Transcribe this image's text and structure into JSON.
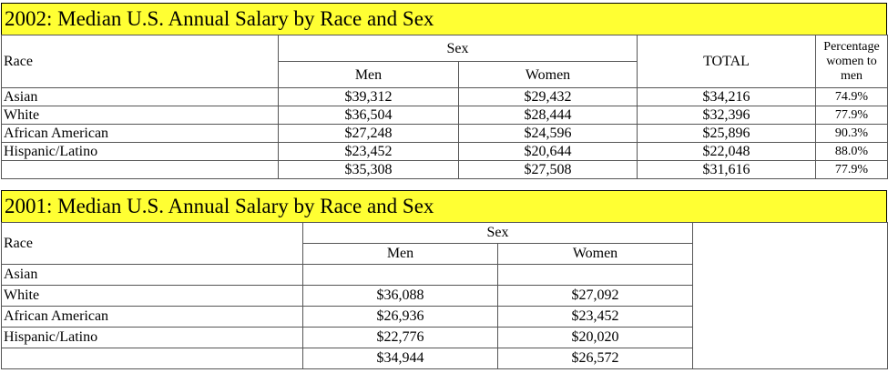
{
  "table2002": {
    "title": "2002: Median U.S. Annual Salary by Race and Sex",
    "header": {
      "race": "Race",
      "sex": "Sex",
      "men": "Men",
      "women": "Women",
      "total": "TOTAL",
      "pct": "Percentage women to men"
    },
    "rows": [
      {
        "race": "Asian",
        "men": "$39,312",
        "women": "$29,432",
        "total": "$34,216",
        "pct": "74.9%"
      },
      {
        "race": "White",
        "men": "$36,504",
        "women": "$28,444",
        "total": "$32,396",
        "pct": "77.9%"
      },
      {
        "race": "African American",
        "men": "$27,248",
        "women": "$24,596",
        "total": "$25,896",
        "pct": "90.3%"
      },
      {
        "race": "Hispanic/Latino",
        "men": "$23,452",
        "women": "$20,644",
        "total": "$22,048",
        "pct": "88.0%"
      },
      {
        "race": "",
        "men": "$35,308",
        "women": "$27,508",
        "total": "$31,616",
        "pct": "77.9%"
      }
    ]
  },
  "table2001": {
    "title": "2001: Median U.S. Annual Salary by Race and Sex",
    "header": {
      "race": "Race",
      "sex": "Sex",
      "men": "Men",
      "women": "Women"
    },
    "rows": [
      {
        "race": "Asian",
        "men": "",
        "women": ""
      },
      {
        "race": "White",
        "men": "$36,088",
        "women": "$27,092"
      },
      {
        "race": "African American",
        "men": "$26,936",
        "women": "$23,452"
      },
      {
        "race": "Hispanic/Latino",
        "men": "$22,776",
        "women": "$20,020"
      },
      {
        "race": "",
        "men": "$34,944",
        "women": "$26,572"
      }
    ]
  }
}
